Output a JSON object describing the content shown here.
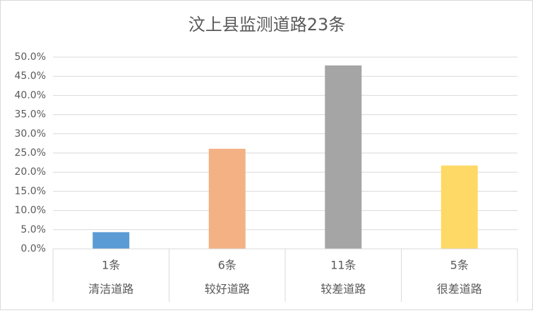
{
  "chart_data": {
    "type": "bar",
    "title": "汶上县监测道路23条",
    "categories": [
      [
        "1条",
        "清洁道路"
      ],
      [
        "6条",
        "较好道路"
      ],
      [
        "11条",
        "较差道路"
      ],
      [
        "5条",
        "很差道路"
      ]
    ],
    "values": [
      4.35,
      26.09,
      47.83,
      21.74
    ],
    "colors": [
      "#5b9bd5",
      "#f4b183",
      "#a5a5a5",
      "#ffd966"
    ],
    "ylim": [
      0,
      50
    ],
    "yticks": [
      {
        "value": 0,
        "label": "0.0%"
      },
      {
        "value": 5,
        "label": "5.0%"
      },
      {
        "value": 10,
        "label": "10.0%"
      },
      {
        "value": 15,
        "label": "15.0%"
      },
      {
        "value": 20,
        "label": "20.0%"
      },
      {
        "value": 25,
        "label": "25.0%"
      },
      {
        "value": 30,
        "label": "30.0%"
      },
      {
        "value": 35,
        "label": "35.0%"
      },
      {
        "value": 40,
        "label": "40.0%"
      },
      {
        "value": 45,
        "label": "45.0%"
      },
      {
        "value": 50,
        "label": "50.0%"
      }
    ],
    "grid": true
  }
}
